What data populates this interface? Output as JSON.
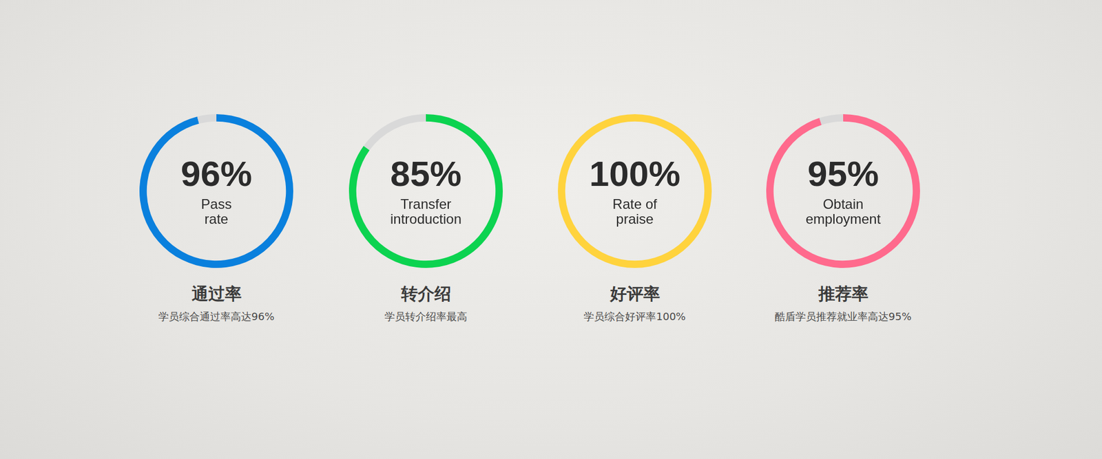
{
  "chart_data": [
    {
      "type": "doughnut",
      "title": "通过率",
      "subtitle": "学员综合通过率高达96%",
      "annotations": [
        "Pass",
        "rate"
      ],
      "values": [
        96
      ],
      "value_labels": [
        "96%"
      ],
      "color": "#0a80dd",
      "ylim": [
        0,
        100
      ],
      "data_labels": true
    },
    {
      "type": "doughnut",
      "title": "转介绍",
      "subtitle": "学员转介绍率最高",
      "annotations": [
        "Transfer",
        "introduction"
      ],
      "values": [
        85
      ],
      "value_labels": [
        "85%"
      ],
      "color": "#0cd350",
      "ylim": [
        0,
        100
      ],
      "data_labels": true
    },
    {
      "type": "doughnut",
      "title": "好评率",
      "subtitle": "学员综合好评率100%",
      "annotations": [
        "Rate of",
        "praise"
      ],
      "values": [
        100
      ],
      "value_labels": [
        "100%"
      ],
      "color": "#ffd33d",
      "ylim": [
        0,
        100
      ],
      "data_labels": true
    },
    {
      "type": "doughnut",
      "title": "推荐率",
      "subtitle": "酷盾学员推荐就业率高达95%",
      "annotations": [
        "Obtain",
        "employment"
      ],
      "values": [
        95
      ],
      "value_labels": [
        "95%"
      ],
      "color": "#ff6a8d",
      "ylim": [
        0,
        100
      ],
      "data_labels": true
    }
  ]
}
